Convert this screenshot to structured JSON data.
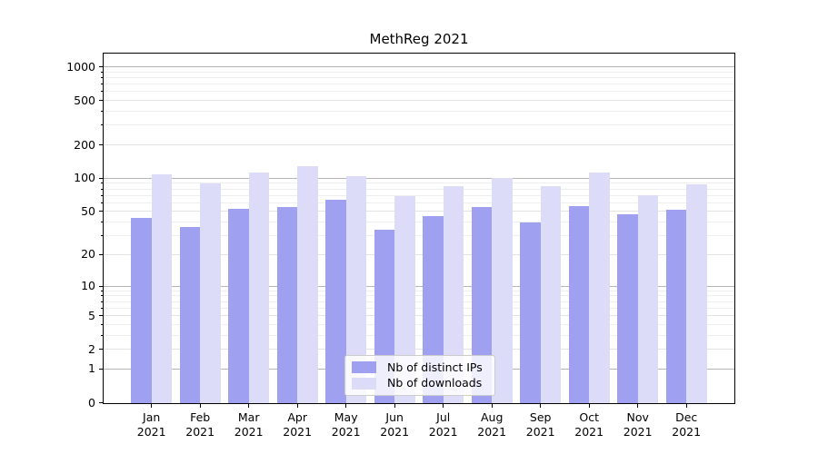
{
  "title": "MethReg 2021",
  "chart_data": {
    "type": "bar",
    "title": "MethReg 2021",
    "categories": [
      "Jan",
      "Feb",
      "Mar",
      "Apr",
      "May",
      "Jun",
      "Jul",
      "Aug",
      "Sep",
      "Oct",
      "Nov",
      "Dec"
    ],
    "x_year": "2021",
    "series": [
      {
        "name": "Nb of distinct IPs",
        "color": "#a0a0f0",
        "values": [
          44,
          36,
          53,
          55,
          64,
          34,
          45,
          55,
          40,
          56,
          47,
          52
        ]
      },
      {
        "name": "Nb of downloads",
        "color": "#dcdcf9",
        "values": [
          108,
          90,
          113,
          129,
          104,
          69,
          85,
          101,
          85,
          112,
          70,
          88
        ]
      }
    ],
    "yscale": "log1p",
    "yticks": [
      0,
      1,
      2,
      5,
      10,
      20,
      50,
      100,
      200,
      500,
      1000
    ],
    "ytick_labels": [
      "0",
      "1",
      "2",
      "5",
      "10",
      "20",
      "50",
      "100",
      "200",
      "500",
      "1000"
    ],
    "ylim": [
      0,
      1360
    ],
    "grid": "horizontal",
    "legend_position": "lower center inside",
    "colors": {
      "axis": "#000000",
      "grid_major": "#b5b5b5",
      "grid_mid": "#e3e3e3",
      "grid_minor": "#eeeeee",
      "legend_border": "#cccccc",
      "legend_bg": "rgba(255,255,255,0.82)",
      "text": "#000000"
    }
  }
}
